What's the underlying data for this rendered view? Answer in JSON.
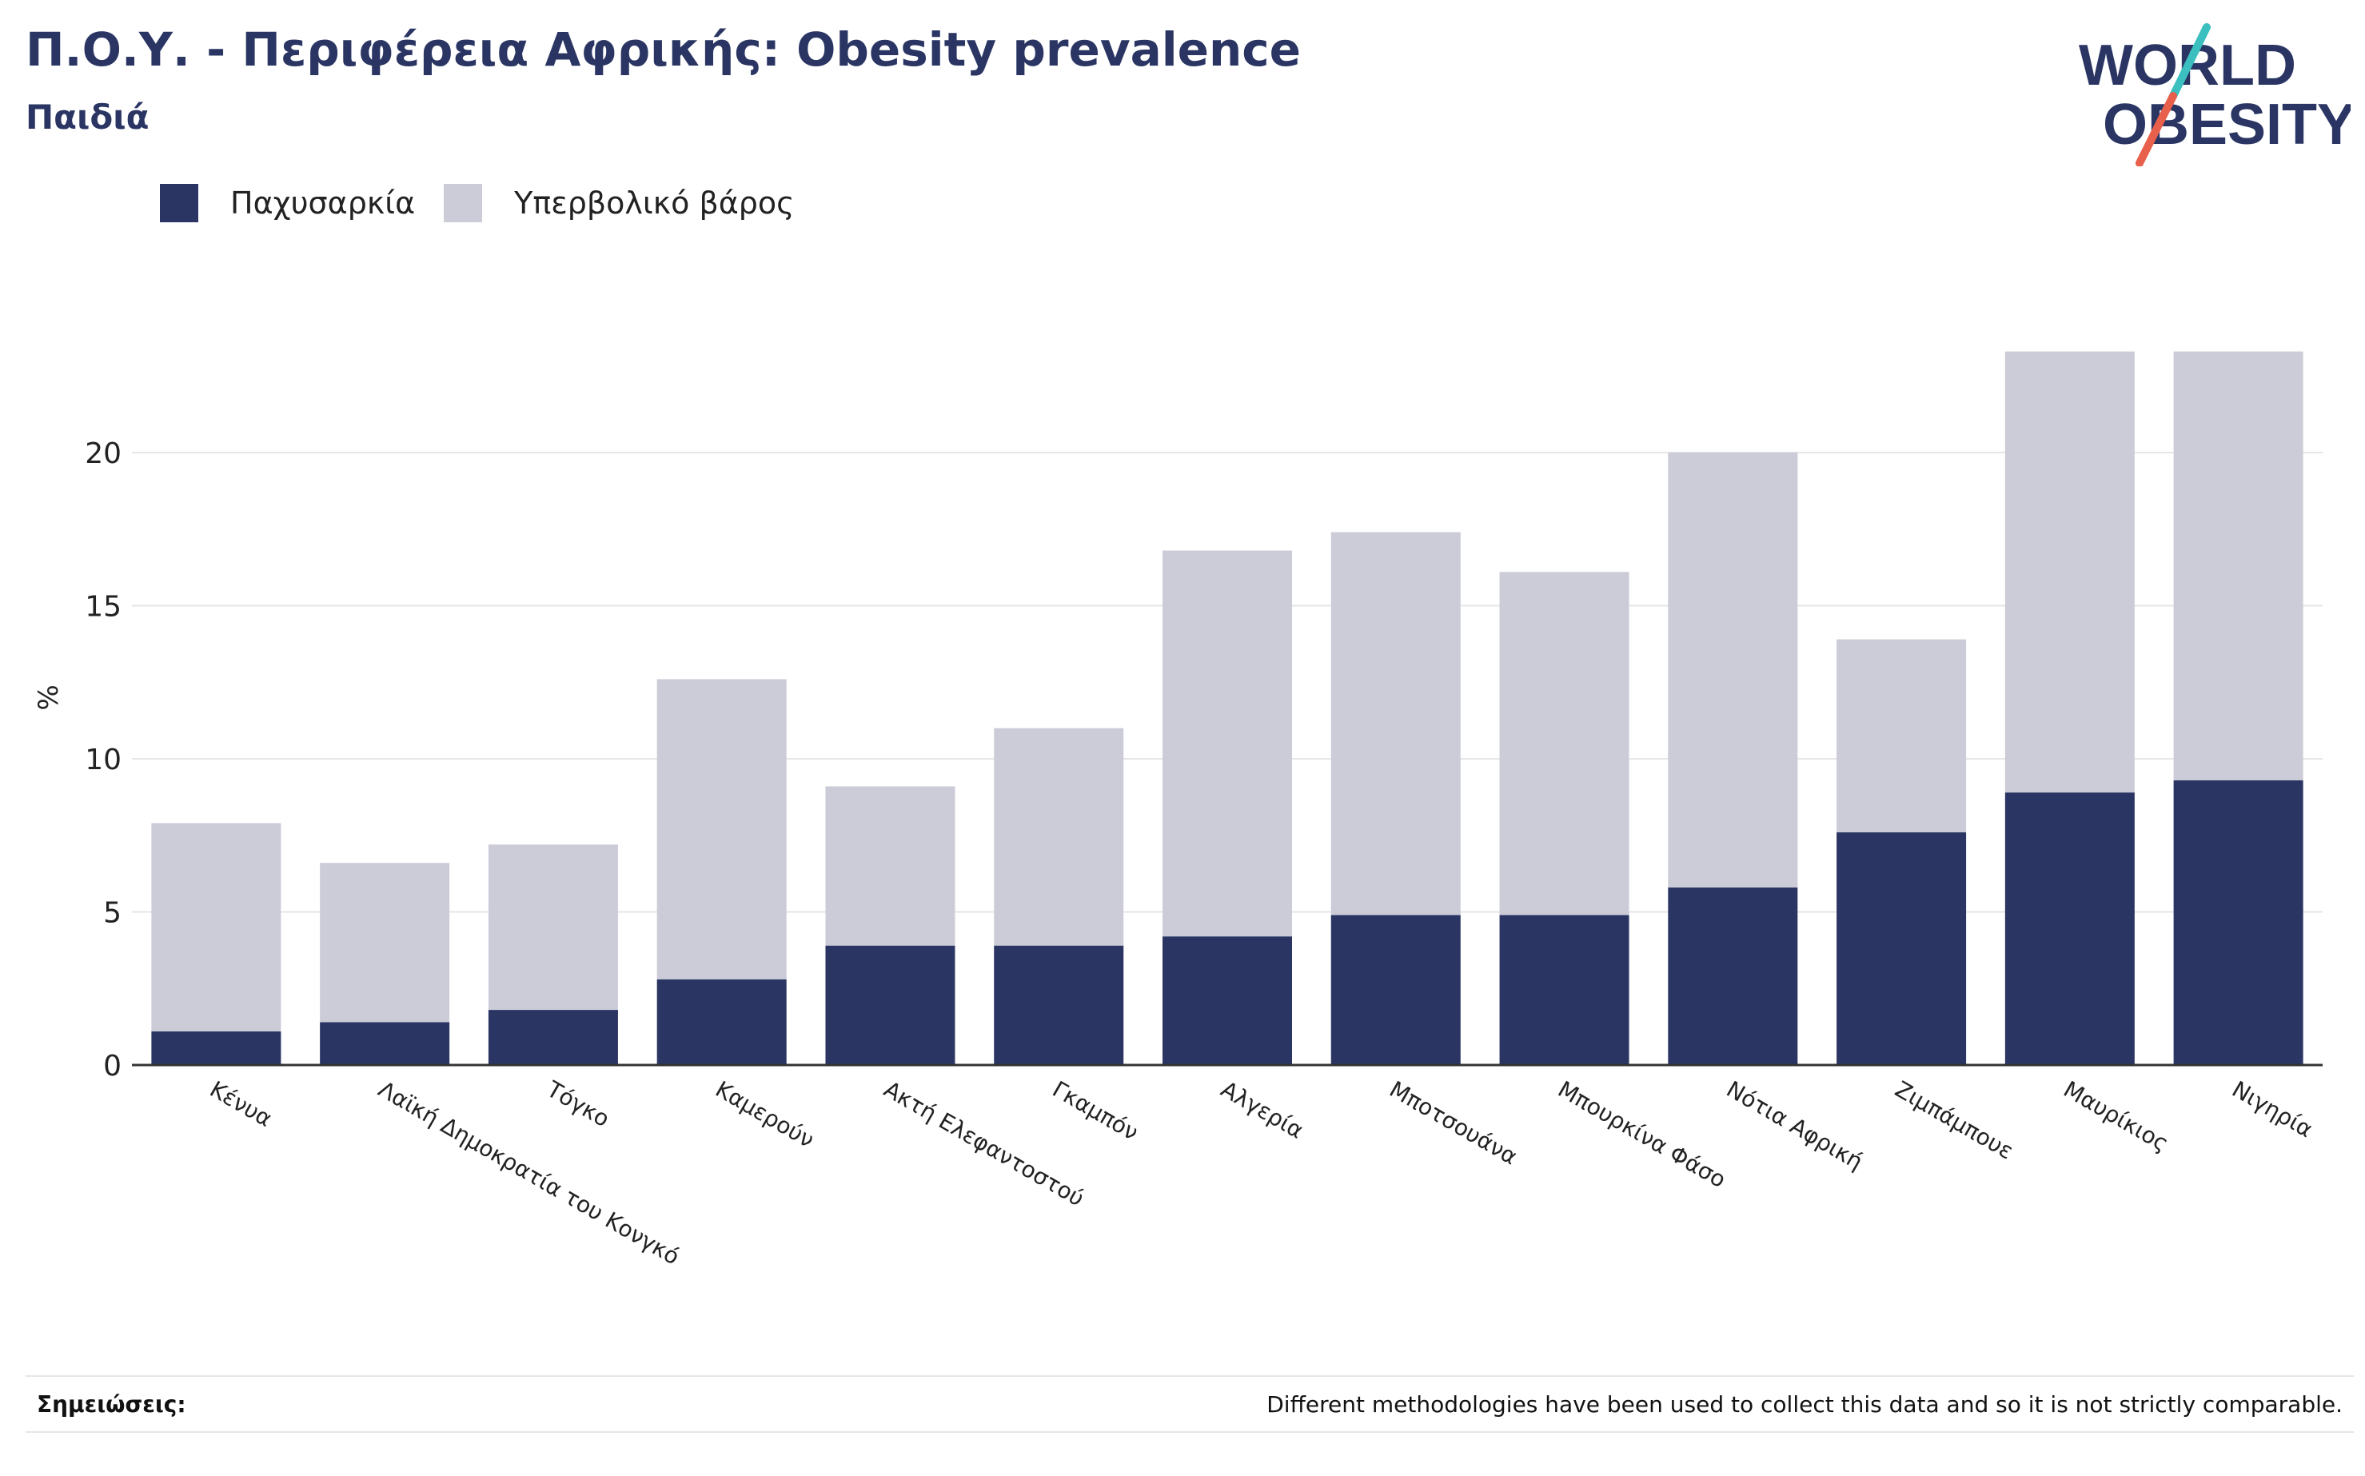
{
  "header": {
    "title": "Π.Ο.Υ. - Περιφέρεια Αφρικής: Obesity prevalence",
    "subtitle": "Παιδιά"
  },
  "logo": {
    "line1": "WORLD",
    "line2": "OBESITY",
    "color": "#2a3563",
    "accent_top": "#3bbfbf",
    "accent_bottom": "#e8604c"
  },
  "legend": {
    "items": [
      {
        "label": "Παχυσαρκία",
        "color": "#2a3563"
      },
      {
        "label": "Υπερβολικό βάρος",
        "color": "#cbccd8"
      }
    ]
  },
  "footer": {
    "notes_label": "Σημειώσεις:",
    "notes_text": "Different methodologies have been used to collect this data and so it is not strictly comparable."
  },
  "chart_data": {
    "type": "bar",
    "stacked": true,
    "ylabel": "%",
    "xlabel": "",
    "ylim": [
      0,
      24
    ],
    "yticks": [
      0,
      5,
      10,
      15,
      20
    ],
    "grid": true,
    "legend_position": "top-left",
    "categories": [
      "Κένυα",
      "Λαϊκή Δημοκρατία του Κονγκό",
      "Τόγκο",
      "Καμερούν",
      "Ακτή Ελεφαντοστού",
      "Γκαμπόν",
      "Αλγερία",
      "Μποτσουάνα",
      "Μπουρκίνα Φάσο",
      "Νότια Αφρική",
      "Ζιμπάμπουε",
      "Μαυρίκιος",
      "Νιγηρία"
    ],
    "series": [
      {
        "name": "Παχυσαρκία",
        "color": "#2a3563",
        "values": [
          1.1,
          1.4,
          1.8,
          2.8,
          3.9,
          3.9,
          4.2,
          4.9,
          4.9,
          5.8,
          7.6,
          8.9,
          9.3
        ]
      },
      {
        "name": "Υπερβολικό βάρος",
        "color": "#cbccd8",
        "values": [
          6.8,
          5.2,
          5.4,
          9.8,
          5.2,
          7.1,
          12.6,
          12.5,
          11.2,
          14.2,
          6.3,
          14.4,
          14.0
        ]
      }
    ]
  }
}
